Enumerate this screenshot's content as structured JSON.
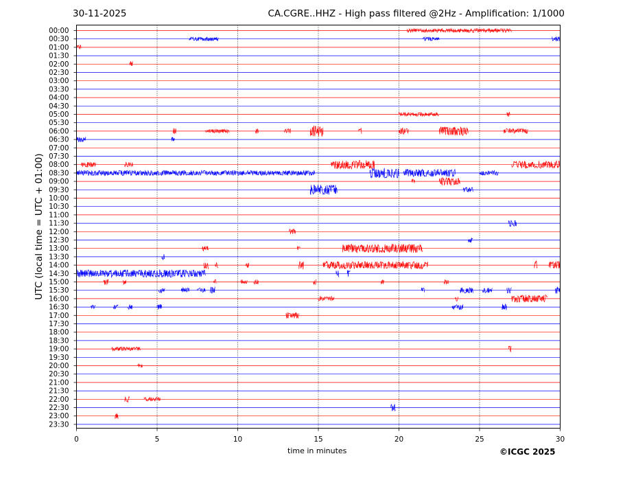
{
  "header": {
    "date": "30-11-2025",
    "title": "CA.CGRE..HHZ - High pass filtered @2Hz - Amplification: 1/1000"
  },
  "footer": {
    "copyright": "©ICGC 2025"
  },
  "chart_data": {
    "type": "line",
    "title": "CA.CGRE..HHZ - High pass filtered @2Hz - Amplification: 1/1000",
    "subtitle": "30-11-2025",
    "xlabel": "time in minutes",
    "ylabel": "UTC (local time = UTC + 01:00)",
    "xlim": [
      0,
      30
    ],
    "x_ticks": [
      0,
      5,
      10,
      15,
      20,
      25,
      30
    ],
    "grid": "vertical dotted lines at 5, 10, 15, 20, 25",
    "trace_colors": [
      "#ff0000",
      "#0000ff"
    ],
    "rows": [
      "00:00",
      "00:30",
      "01:00",
      "01:30",
      "02:00",
      "02:30",
      "03:00",
      "03:30",
      "04:00",
      "04:30",
      "05:00",
      "05:30",
      "06:00",
      "06:30",
      "07:00",
      "07:30",
      "08:00",
      "08:30",
      "09:00",
      "09:30",
      "10:00",
      "10:30",
      "11:00",
      "11:30",
      "12:00",
      "12:30",
      "13:00",
      "13:30",
      "14:00",
      "14:30",
      "15:00",
      "15:30",
      "16:00",
      "16:30",
      "17:00",
      "17:30",
      "18:00",
      "18:30",
      "19:00",
      "19:30",
      "20:00",
      "20:30",
      "21:00",
      "21:30",
      "22:00",
      "22:30",
      "23:00",
      "23:30"
    ],
    "bursts": [
      {
        "row": "00:00",
        "start": 20.5,
        "end": 27.0,
        "amp": 0.15
      },
      {
        "row": "00:30",
        "start": 7.0,
        "end": 8.8,
        "amp": 0.15
      },
      {
        "row": "00:30",
        "start": 21.5,
        "end": 22.5,
        "amp": 0.15
      },
      {
        "row": "00:30",
        "start": 29.5,
        "end": 30.0,
        "amp": 0.2
      },
      {
        "row": "01:00",
        "start": 0.0,
        "end": 0.3,
        "amp": 0.2
      },
      {
        "row": "02:00",
        "start": 3.3,
        "end": 3.5,
        "amp": 0.25
      },
      {
        "row": "05:00",
        "start": 20.0,
        "end": 22.5,
        "amp": 0.15
      },
      {
        "row": "05:00",
        "start": 26.7,
        "end": 26.9,
        "amp": 0.2
      },
      {
        "row": "06:00",
        "start": 6.0,
        "end": 6.2,
        "amp": 0.25
      },
      {
        "row": "06:00",
        "start": 8.0,
        "end": 9.5,
        "amp": 0.15
      },
      {
        "row": "06:00",
        "start": 11.1,
        "end": 11.3,
        "amp": 0.2
      },
      {
        "row": "06:00",
        "start": 12.9,
        "end": 13.3,
        "amp": 0.2
      },
      {
        "row": "06:00",
        "start": 14.5,
        "end": 15.3,
        "amp": 0.45
      },
      {
        "row": "06:00",
        "start": 17.5,
        "end": 17.7,
        "amp": 0.25
      },
      {
        "row": "06:00",
        "start": 20.0,
        "end": 20.6,
        "amp": 0.25
      },
      {
        "row": "06:00",
        "start": 22.5,
        "end": 24.3,
        "amp": 0.35
      },
      {
        "row": "06:00",
        "start": 26.5,
        "end": 28.0,
        "amp": 0.2
      },
      {
        "row": "06:30",
        "start": 0.0,
        "end": 0.6,
        "amp": 0.2
      },
      {
        "row": "06:30",
        "start": 5.9,
        "end": 6.1,
        "amp": 0.2
      },
      {
        "row": "08:00",
        "start": 0.3,
        "end": 1.2,
        "amp": 0.2
      },
      {
        "row": "08:00",
        "start": 3.0,
        "end": 3.5,
        "amp": 0.2
      },
      {
        "row": "08:00",
        "start": 15.8,
        "end": 18.5,
        "amp": 0.35
      },
      {
        "row": "08:00",
        "start": 27.0,
        "end": 30.0,
        "amp": 0.3
      },
      {
        "row": "08:30",
        "start": 0.0,
        "end": 14.8,
        "amp": 0.2
      },
      {
        "row": "08:30",
        "start": 18.2,
        "end": 20.0,
        "amp": 0.4
      },
      {
        "row": "08:30",
        "start": 20.3,
        "end": 23.5,
        "amp": 0.3
      },
      {
        "row": "08:30",
        "start": 25.0,
        "end": 26.2,
        "amp": 0.2
      },
      {
        "row": "09:00",
        "start": 20.8,
        "end": 21.0,
        "amp": 0.25
      },
      {
        "row": "09:00",
        "start": 22.5,
        "end": 23.8,
        "amp": 0.3
      },
      {
        "row": "09:30",
        "start": 14.5,
        "end": 16.2,
        "amp": 0.4
      },
      {
        "row": "09:30",
        "start": 24.0,
        "end": 24.6,
        "amp": 0.2
      },
      {
        "row": "11:30",
        "start": 26.8,
        "end": 27.3,
        "amp": 0.25
      },
      {
        "row": "12:00",
        "start": 13.2,
        "end": 13.6,
        "amp": 0.2
      },
      {
        "row": "12:30",
        "start": 24.3,
        "end": 24.6,
        "amp": 0.2
      },
      {
        "row": "13:00",
        "start": 7.8,
        "end": 8.2,
        "amp": 0.2
      },
      {
        "row": "13:00",
        "start": 13.7,
        "end": 13.9,
        "amp": 0.2
      },
      {
        "row": "13:00",
        "start": 16.5,
        "end": 21.5,
        "amp": 0.35
      },
      {
        "row": "13:30",
        "start": 5.3,
        "end": 5.5,
        "amp": 0.25
      },
      {
        "row": "14:00",
        "start": 7.9,
        "end": 8.2,
        "amp": 0.35
      },
      {
        "row": "14:00",
        "start": 8.6,
        "end": 8.8,
        "amp": 0.25
      },
      {
        "row": "14:00",
        "start": 10.5,
        "end": 10.7,
        "amp": 0.2
      },
      {
        "row": "14:00",
        "start": 13.8,
        "end": 14.1,
        "amp": 0.35
      },
      {
        "row": "14:00",
        "start": 15.3,
        "end": 21.8,
        "amp": 0.3
      },
      {
        "row": "14:00",
        "start": 28.4,
        "end": 28.6,
        "amp": 0.35
      },
      {
        "row": "14:00",
        "start": 29.3,
        "end": 30.0,
        "amp": 0.3
      },
      {
        "row": "14:30",
        "start": 0.0,
        "end": 8.0,
        "amp": 0.3
      },
      {
        "row": "14:30",
        "start": 16.1,
        "end": 16.3,
        "amp": 0.3
      },
      {
        "row": "14:30",
        "start": 16.8,
        "end": 17.0,
        "amp": 0.25
      },
      {
        "row": "15:00",
        "start": 1.7,
        "end": 2.0,
        "amp": 0.25
      },
      {
        "row": "15:00",
        "start": 2.9,
        "end": 3.1,
        "amp": 0.2
      },
      {
        "row": "15:00",
        "start": 8.5,
        "end": 8.7,
        "amp": 0.2
      },
      {
        "row": "15:00",
        "start": 10.2,
        "end": 10.6,
        "amp": 0.2
      },
      {
        "row": "15:00",
        "start": 11.0,
        "end": 11.3,
        "amp": 0.2
      },
      {
        "row": "15:00",
        "start": 14.7,
        "end": 14.9,
        "amp": 0.2
      },
      {
        "row": "15:00",
        "start": 18.9,
        "end": 19.1,
        "amp": 0.2
      },
      {
        "row": "15:00",
        "start": 22.8,
        "end": 23.1,
        "amp": 0.2
      },
      {
        "row": "15:30",
        "start": 5.1,
        "end": 5.5,
        "amp": 0.2
      },
      {
        "row": "15:30",
        "start": 6.5,
        "end": 7.0,
        "amp": 0.2
      },
      {
        "row": "15:30",
        "start": 7.5,
        "end": 8.0,
        "amp": 0.2
      },
      {
        "row": "15:30",
        "start": 8.3,
        "end": 8.6,
        "amp": 0.3
      },
      {
        "row": "15:30",
        "start": 21.4,
        "end": 21.6,
        "amp": 0.2
      },
      {
        "row": "15:30",
        "start": 23.8,
        "end": 24.6,
        "amp": 0.25
      },
      {
        "row": "15:30",
        "start": 25.2,
        "end": 25.8,
        "amp": 0.2
      },
      {
        "row": "15:30",
        "start": 26.7,
        "end": 27.0,
        "amp": 0.25
      },
      {
        "row": "15:30",
        "start": 29.7,
        "end": 30.0,
        "amp": 0.3
      },
      {
        "row": "16:00",
        "start": 15.0,
        "end": 16.0,
        "amp": 0.2
      },
      {
        "row": "16:00",
        "start": 23.5,
        "end": 23.7,
        "amp": 0.2
      },
      {
        "row": "16:00",
        "start": 27.0,
        "end": 29.2,
        "amp": 0.3
      },
      {
        "row": "16:30",
        "start": 0.9,
        "end": 1.2,
        "amp": 0.2
      },
      {
        "row": "16:30",
        "start": 2.3,
        "end": 2.6,
        "amp": 0.2
      },
      {
        "row": "16:30",
        "start": 3.2,
        "end": 3.5,
        "amp": 0.2
      },
      {
        "row": "16:30",
        "start": 5.0,
        "end": 5.3,
        "amp": 0.25
      },
      {
        "row": "16:30",
        "start": 23.3,
        "end": 24.0,
        "amp": 0.2
      },
      {
        "row": "16:30",
        "start": 26.4,
        "end": 26.7,
        "amp": 0.25
      },
      {
        "row": "17:00",
        "start": 13.0,
        "end": 13.8,
        "amp": 0.25
      },
      {
        "row": "19:00",
        "start": 2.2,
        "end": 4.0,
        "amp": 0.15
      },
      {
        "row": "19:00",
        "start": 26.8,
        "end": 27.0,
        "amp": 0.3
      },
      {
        "row": "20:00",
        "start": 3.8,
        "end": 4.1,
        "amp": 0.15
      },
      {
        "row": "22:00",
        "start": 3.0,
        "end": 3.3,
        "amp": 0.25
      },
      {
        "row": "22:00",
        "start": 4.2,
        "end": 5.2,
        "amp": 0.15
      },
      {
        "row": "22:30",
        "start": 19.5,
        "end": 19.8,
        "amp": 0.3
      },
      {
        "row": "23:00",
        "start": 2.4,
        "end": 2.6,
        "amp": 0.25
      }
    ]
  }
}
